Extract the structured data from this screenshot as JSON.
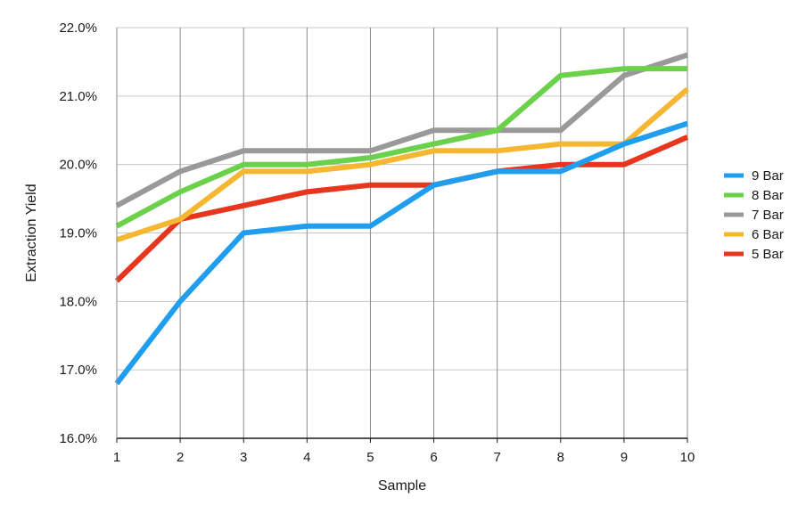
{
  "chart_data": {
    "type": "line",
    "title": "",
    "xlabel": "Sample",
    "ylabel": "Extraction Yield",
    "x": [
      1,
      2,
      3,
      4,
      5,
      6,
      7,
      8,
      9,
      10
    ],
    "x_tick_labels": [
      "1",
      "2",
      "3",
      "4",
      "5",
      "6",
      "7",
      "8",
      "9",
      "10"
    ],
    "ylim": [
      16.0,
      22.0
    ],
    "y_ticks": [
      16.0,
      17.0,
      18.0,
      19.0,
      20.0,
      21.0,
      22.0
    ],
    "y_tick_labels": [
      "16.0%",
      "17.0%",
      "18.0%",
      "19.0%",
      "20.0%",
      "21.0%",
      "22.0%"
    ],
    "grid": true,
    "legend_position": "right",
    "series": [
      {
        "name": "5 Bar",
        "color": "#e8361e",
        "values": [
          18.3,
          19.2,
          19.4,
          19.6,
          19.7,
          19.7,
          19.9,
          20.0,
          20.0,
          20.4
        ]
      },
      {
        "name": "6 Bar",
        "color": "#f5b731",
        "values": [
          18.9,
          19.2,
          19.9,
          19.9,
          20.0,
          20.2,
          20.2,
          20.3,
          20.3,
          21.1
        ]
      },
      {
        "name": "7 Bar",
        "color": "#999999",
        "values": [
          19.4,
          19.9,
          20.2,
          20.2,
          20.2,
          20.5,
          20.5,
          20.5,
          21.3,
          21.6
        ]
      },
      {
        "name": "8 Bar",
        "color": "#6bd14b",
        "values": [
          19.1,
          19.6,
          20.0,
          20.0,
          20.1,
          20.3,
          20.5,
          21.3,
          21.4,
          21.4
        ]
      },
      {
        "name": "9 Bar",
        "color": "#1f9ef0",
        "values": [
          16.8,
          18.0,
          19.0,
          19.1,
          19.1,
          19.7,
          19.9,
          19.9,
          20.3,
          20.6
        ]
      }
    ],
    "legend_order": [
      "9 Bar",
      "8 Bar",
      "7 Bar",
      "6 Bar",
      "5 Bar"
    ]
  }
}
